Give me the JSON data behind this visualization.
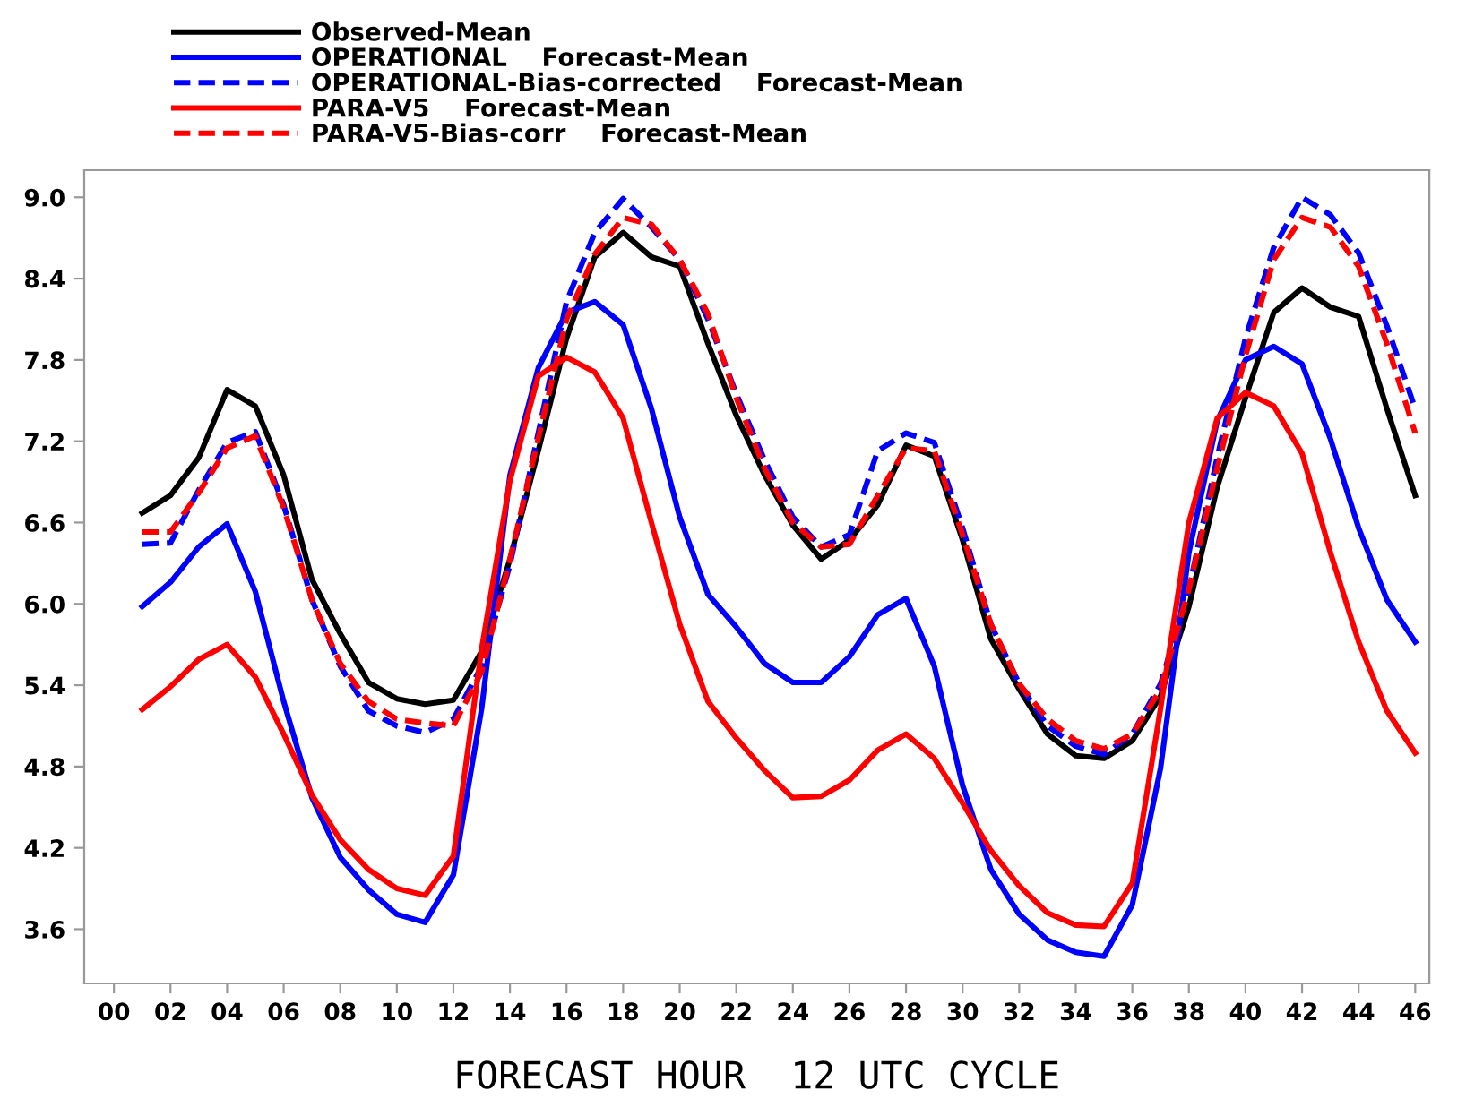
{
  "chart_data": {
    "type": "line",
    "xlabel": "FORECAST HOUR  12 UTC CYCLE",
    "x": [
      1,
      2,
      3,
      4,
      5,
      6,
      7,
      8,
      9,
      10,
      11,
      12,
      13,
      14,
      15,
      16,
      17,
      18,
      19,
      20,
      21,
      22,
      23,
      24,
      25,
      26,
      27,
      28,
      29,
      30,
      31,
      32,
      33,
      34,
      35,
      36,
      37,
      38,
      39,
      40,
      41,
      42,
      43,
      44,
      45,
      46
    ],
    "series": [
      {
        "name": "Observed-Mean",
        "color": "#000000",
        "line_style": "solid",
        "values": [
          6.67,
          6.8,
          7.08,
          7.58,
          7.46,
          6.95,
          6.18,
          5.78,
          5.42,
          5.3,
          5.26,
          5.29,
          5.65,
          6.33,
          7.13,
          7.96,
          8.56,
          8.74,
          8.56,
          8.49,
          7.92,
          7.39,
          6.95,
          6.58,
          6.33,
          6.47,
          6.73,
          7.17,
          7.09,
          6.47,
          5.74,
          5.37,
          5.04,
          4.88,
          4.86,
          4.99,
          5.32,
          5.98,
          6.86,
          7.52,
          8.15,
          8.33,
          8.19,
          8.12,
          7.44,
          6.8
        ]
      },
      {
        "name": "OPERATIONAL    Forecast-Mean",
        "color": "#0000ff",
        "line_style": "solid",
        "values": [
          5.98,
          6.16,
          6.42,
          6.59,
          6.09,
          5.28,
          4.57,
          4.13,
          3.89,
          3.71,
          3.65,
          4.0,
          5.23,
          6.95,
          7.74,
          8.15,
          8.23,
          8.06,
          7.44,
          6.64,
          6.07,
          5.83,
          5.56,
          5.42,
          5.42,
          5.61,
          5.92,
          6.04,
          5.54,
          4.66,
          4.04,
          3.71,
          3.52,
          3.43,
          3.4,
          3.78,
          4.79,
          6.38,
          7.35,
          7.8,
          7.9,
          7.77,
          7.22,
          6.56,
          6.03,
          5.72
        ]
      },
      {
        "name": "OPERATIONAL-Bias-corrected    Forecast-Mean",
        "color": "#0000ff",
        "line_style": "dashed",
        "values": [
          6.44,
          6.45,
          6.84,
          7.19,
          7.27,
          6.73,
          6.03,
          5.54,
          5.21,
          5.1,
          5.05,
          5.15,
          5.54,
          6.29,
          7.26,
          8.23,
          8.74,
          8.99,
          8.78,
          8.54,
          8.1,
          7.55,
          7.06,
          6.64,
          6.42,
          6.51,
          7.13,
          7.26,
          7.19,
          6.56,
          5.85,
          5.41,
          5.1,
          4.95,
          4.89,
          5.04,
          5.41,
          6.11,
          7.08,
          7.96,
          8.63,
          9.0,
          8.87,
          8.59,
          8.05,
          7.44
        ]
      },
      {
        "name": "PARA-V5    Forecast-Mean",
        "color": "#ff0000",
        "line_style": "solid",
        "values": [
          5.22,
          5.39,
          5.59,
          5.7,
          5.46,
          5.04,
          4.59,
          4.26,
          4.04,
          3.9,
          3.85,
          4.14,
          5.67,
          6.91,
          7.68,
          7.82,
          7.71,
          7.37,
          6.6,
          5.85,
          5.28,
          5.01,
          4.77,
          4.57,
          4.58,
          4.7,
          4.92,
          5.04,
          4.86,
          4.53,
          4.18,
          3.92,
          3.72,
          3.63,
          3.62,
          3.94,
          5.23,
          6.6,
          7.37,
          7.56,
          7.46,
          7.11,
          6.38,
          5.72,
          5.21,
          4.9
        ]
      },
      {
        "name": "PARA-V5-Bias-corr    Forecast-Mean",
        "color": "#ff0000",
        "line_style": "dashed",
        "values": [
          6.53,
          6.53,
          6.82,
          7.15,
          7.24,
          6.71,
          6.03,
          5.56,
          5.28,
          5.15,
          5.12,
          5.1,
          5.5,
          6.33,
          7.22,
          8.1,
          8.58,
          8.85,
          8.8,
          8.54,
          8.14,
          7.52,
          7.0,
          6.6,
          6.42,
          6.44,
          6.8,
          7.15,
          7.13,
          6.51,
          5.85,
          5.41,
          5.15,
          4.99,
          4.93,
          5.04,
          5.37,
          6.11,
          7.0,
          7.83,
          8.54,
          8.85,
          8.78,
          8.49,
          7.92,
          7.26
        ]
      }
    ],
    "xlim": [
      -1.05,
      46.5
    ],
    "ylim": [
      3.2,
      9.2
    ],
    "xticks": [
      {
        "value": 0,
        "label": "00"
      },
      {
        "value": 2,
        "label": "02"
      },
      {
        "value": 4,
        "label": "04"
      },
      {
        "value": 6,
        "label": "06"
      },
      {
        "value": 8,
        "label": "08"
      },
      10,
      12,
      14,
      16,
      18,
      20,
      22,
      24,
      26,
      28,
      30,
      32,
      34,
      36,
      38,
      40,
      42,
      44,
      46
    ],
    "yticks": [
      {
        "value": 3.6,
        "label": "3.6"
      },
      {
        "value": 4.2,
        "label": "4.2"
      },
      {
        "value": 4.8,
        "label": "4.8"
      },
      {
        "value": 5.4,
        "label": "5.4"
      },
      {
        "value": 6.0,
        "label": "6.0"
      },
      {
        "value": 6.6,
        "label": "6.6"
      },
      {
        "value": 7.2,
        "label": "7.2"
      },
      {
        "value": 7.8,
        "label": "7.8"
      },
      {
        "value": 8.4,
        "label": "8.4"
      },
      {
        "value": 9.0,
        "label": "9.0"
      }
    ],
    "grid": false,
    "legend": "top left",
    "marker": "none"
  }
}
